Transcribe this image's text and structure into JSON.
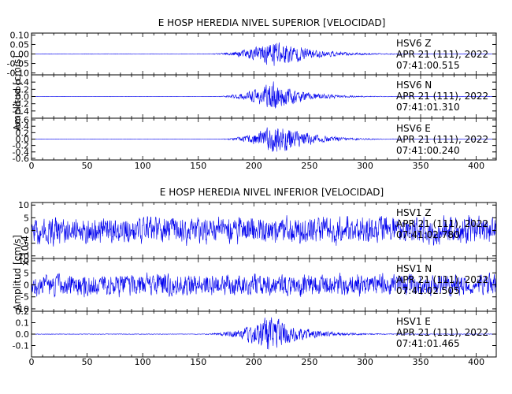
{
  "chart_data": [
    {
      "type": "line",
      "title": "E HOSP HEREDIA NIVEL SUPERIOR [VELOCIDAD]",
      "xlabel": "",
      "ylabel": "Amplitud [cm/s]",
      "xlim": [
        0,
        418
      ],
      "x_ticks": [
        "0",
        "50",
        "100",
        "150",
        "200",
        "250",
        "300",
        "350",
        "400"
      ],
      "panels": [
        {
          "station": "HSV6",
          "component": "Z",
          "date": "APR 21 (111), 2022",
          "time": "07:41:00.515",
          "ylim": [
            -0.11,
            0.11
          ],
          "y_ticks": [
            "0.10",
            "0.05",
            "0.00",
            "-0.05",
            "-0.10"
          ],
          "signal": {
            "onset": 155,
            "peak_t": 218,
            "peak_amp": 0.085,
            "decay_end": 395,
            "noise": 0.0015,
            "seed": 11
          }
        },
        {
          "station": "HSV6",
          "component": "N",
          "date": "APR 21 (111), 2022",
          "time": "07:41:01.310",
          "ylim": [
            -0.6,
            0.6
          ],
          "y_ticks": [
            "0.4",
            "0.2",
            "0.0",
            "-0.2",
            "-0.4"
          ],
          "signal": {
            "onset": 160,
            "peak_t": 215,
            "peak_amp": 0.42,
            "decay_end": 360,
            "noise": 0.006,
            "seed": 23
          }
        },
        {
          "station": "HSV6",
          "component": "E",
          "date": "APR 21 (111), 2022",
          "time": "07:41:00.240",
          "ylim": [
            -0.65,
            0.65
          ],
          "y_ticks": [
            "0.6",
            "0.4",
            "0.2",
            "0.0",
            "-0.2",
            "-0.4",
            "-0.6"
          ],
          "signal": {
            "onset": 165,
            "peak_t": 220,
            "peak_amp": 0.55,
            "decay_end": 370,
            "noise": 0.006,
            "seed": 37
          }
        }
      ]
    },
    {
      "type": "line",
      "title": "E HOSP HEREDIA NIVEL INFERIOR [VELOCIDAD]",
      "xlabel": "",
      "ylabel": "Amplitud [cm/s]",
      "y_scale_label": "x 10-4",
      "xlim": [
        0,
        418
      ],
      "x_ticks": [
        "0",
        "50",
        "100",
        "150",
        "200",
        "250",
        "300",
        "350",
        "400"
      ],
      "panels": [
        {
          "station": "HSV1",
          "component": "Z",
          "date": "APR 21 (111), 2022",
          "time": "07:41:02.780",
          "ylim": [
            -11,
            11
          ],
          "y_ticks": [
            "10",
            "5",
            "0",
            "-5",
            "-10"
          ],
          "signal": {
            "onset": 0,
            "peak_t": 200,
            "peak_amp": 7.5,
            "decay_end": 418,
            "noise": 2.5,
            "stationary": true,
            "seed": 51
          }
        },
        {
          "station": "HSV1",
          "component": "N",
          "date": "APR 21 (111), 2022",
          "time": "07:41:02.505",
          "ylim": [
            -11,
            11
          ],
          "y_ticks": [
            "10",
            "5",
            "0",
            "-5",
            "-10"
          ],
          "signal": {
            "onset": 0,
            "peak_t": 200,
            "peak_amp": 6.5,
            "decay_end": 418,
            "noise": 2.2,
            "stationary": true,
            "seed": 67
          }
        },
        {
          "station": "HSV1",
          "component": "E",
          "date": "APR 21 (111), 2022",
          "time": "07:41:01.465",
          "ylim": [
            -0.2,
            0.2
          ],
          "y_ticks": [
            "0.2",
            "0.1",
            "0.0",
            "-0.1"
          ],
          "signal": {
            "onset": 150,
            "peak_t": 212,
            "peak_amp": 0.17,
            "decay_end": 370,
            "noise": 0.003,
            "seed": 79
          }
        }
      ]
    }
  ],
  "colors": {
    "trace": "#0000ee",
    "axis": "#000000"
  }
}
